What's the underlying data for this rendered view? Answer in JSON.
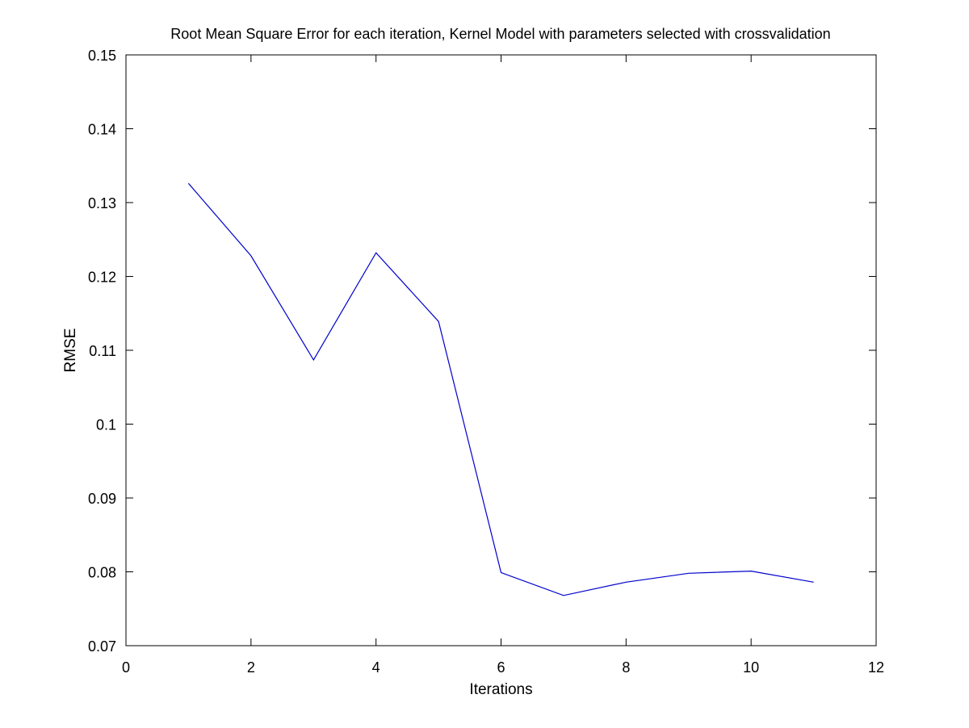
{
  "chart_data": {
    "type": "line",
    "title": "Root Mean Square Error for each iteration, Kernel Model with parameters selected with crossvalidation",
    "xlabel": "Iterations",
    "ylabel": "RMSE",
    "xlim": [
      0,
      12
    ],
    "ylim": [
      0.07,
      0.15
    ],
    "xticks": [
      0,
      2,
      4,
      6,
      8,
      10,
      12
    ],
    "xtick_labels": [
      "0",
      "2",
      "4",
      "6",
      "8",
      "10",
      "12"
    ],
    "yticks": [
      0.07,
      0.08,
      0.09,
      0.1,
      0.11,
      0.12,
      0.13,
      0.14,
      0.15
    ],
    "ytick_labels": [
      "0.07",
      "0.08",
      "0.09",
      "0.1",
      "0.11",
      "0.12",
      "0.13",
      "0.14",
      "0.15"
    ],
    "grid": false,
    "legend": "none",
    "series": [
      {
        "color": "#0000cc",
        "x": [
          1,
          2,
          3,
          4,
          5,
          6,
          7,
          8,
          9,
          10,
          11
        ],
        "y": [
          0.1326,
          0.1228,
          0.1087,
          0.1232,
          0.1139,
          0.0799,
          0.0768,
          0.0786,
          0.0798,
          0.0801,
          0.0786
        ]
      }
    ]
  }
}
